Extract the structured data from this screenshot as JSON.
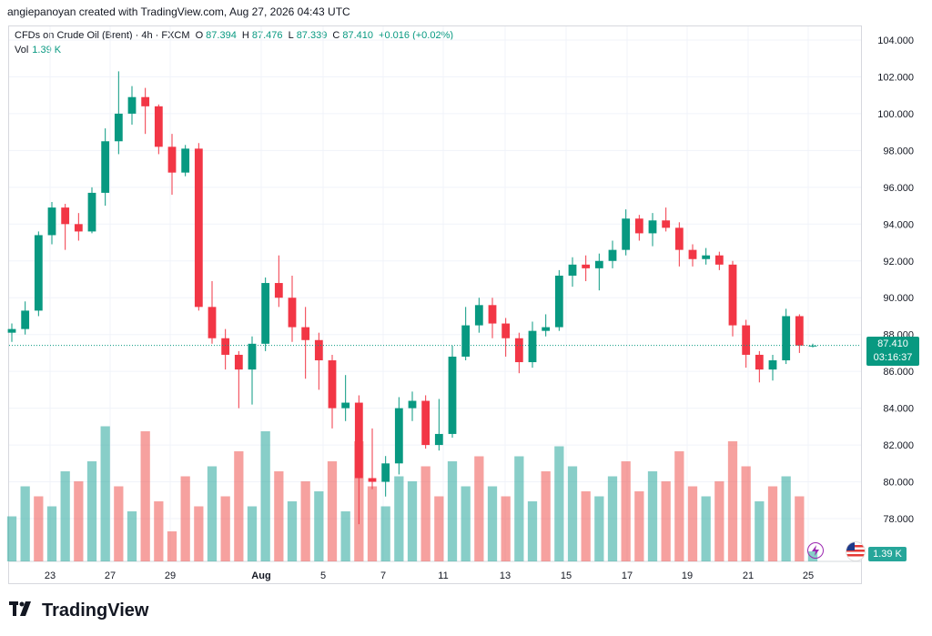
{
  "header": {
    "attribution": "angiepanoyan created with TradingView.com, Aug 27, 2026 04:43 UTC"
  },
  "legend": {
    "symbol": "CFDs on Crude Oil (Brent) · 4h · FXCM",
    "o_label": "O",
    "o_value": "87.394",
    "h_label": "H",
    "h_value": "87.476",
    "l_label": "L",
    "l_value": "87.339",
    "c_label": "C",
    "c_value": "87.410",
    "change": "+0.016 (+0.02%)",
    "vol_label": "Vol",
    "vol_value": "1.39 K"
  },
  "price_axis": {
    "last_price": "87.410",
    "countdown": "03:16:37",
    "volume_badge": "1.39 K"
  },
  "brand": {
    "name": "TradingView"
  },
  "colors": {
    "up": "#089981",
    "down": "#f23645",
    "up_volume": "#26a69a",
    "down_volume": "#ef5350"
  },
  "chart_data": {
    "type": "candlestick",
    "y_ticks": [
      "78.000",
      "80.000",
      "82.000",
      "84.000",
      "86.000",
      "88.000",
      "90.000",
      "92.000",
      "94.000",
      "96.000",
      "98.000",
      "100.000",
      "102.000",
      "104.000"
    ],
    "x_ticks": [
      "23",
      "27",
      "29",
      "Aug",
      "5",
      "7",
      "11",
      "13",
      "15",
      "17",
      "19",
      "21",
      "25",
      "27"
    ],
    "ylim": [
      77,
      105
    ],
    "grid": true,
    "current_price": 87.41,
    "candles": [
      [
        88.1,
        88.3,
        87.6,
        88.6
      ],
      [
        88.3,
        89.3,
        88.0,
        89.8
      ],
      [
        89.3,
        93.4,
        89.0,
        93.6
      ],
      [
        93.4,
        94.9,
        92.9,
        95.2
      ],
      [
        94.9,
        94.0,
        92.6,
        95.1
      ],
      [
        94.0,
        93.6,
        93.1,
        94.6
      ],
      [
        93.6,
        95.7,
        93.5,
        96.0
      ],
      [
        95.7,
        98.5,
        95.0,
        99.2
      ],
      [
        98.5,
        100.0,
        97.8,
        102.3
      ],
      [
        100.0,
        100.9,
        99.4,
        101.5
      ],
      [
        100.9,
        100.4,
        98.9,
        101.4
      ],
      [
        100.4,
        98.2,
        97.8,
        100.5
      ],
      [
        98.2,
        96.8,
        95.6,
        98.9
      ],
      [
        96.8,
        98.1,
        96.6,
        98.3
      ],
      [
        98.1,
        89.5,
        89.3,
        98.4
      ],
      [
        89.5,
        87.8,
        87.5,
        90.9
      ],
      [
        87.8,
        86.9,
        86.1,
        88.3
      ],
      [
        86.9,
        86.1,
        84.0,
        87.1
      ],
      [
        86.1,
        87.5,
        84.2,
        87.9
      ],
      [
        87.5,
        90.8,
        87.1,
        91.1
      ],
      [
        90.8,
        90.0,
        89.5,
        92.3
      ],
      [
        90.0,
        88.4,
        87.6,
        91.2
      ],
      [
        88.4,
        87.7,
        85.6,
        89.5
      ],
      [
        87.7,
        86.6,
        85.0,
        88.1
      ],
      [
        86.6,
        84.0,
        82.9,
        86.9
      ],
      [
        84.0,
        84.3,
        83.3,
        85.8
      ],
      [
        84.3,
        80.2,
        77.7,
        84.7
      ],
      [
        80.2,
        80.0,
        79.6,
        82.9
      ],
      [
        80.0,
        81.0,
        79.2,
        81.4
      ],
      [
        81.0,
        84.0,
        80.4,
        84.6
      ],
      [
        84.0,
        84.4,
        83.3,
        84.9
      ],
      [
        84.4,
        82.0,
        81.8,
        84.7
      ],
      [
        82.0,
        82.6,
        81.7,
        84.5
      ],
      [
        82.6,
        86.8,
        82.4,
        87.4
      ],
      [
        86.8,
        88.5,
        86.6,
        89.5
      ],
      [
        88.5,
        89.6,
        88.1,
        90.0
      ],
      [
        89.6,
        88.6,
        87.8,
        90.0
      ],
      [
        88.6,
        87.8,
        86.8,
        88.9
      ],
      [
        87.8,
        86.5,
        85.9,
        88.1
      ],
      [
        86.5,
        88.2,
        86.2,
        88.7
      ],
      [
        88.2,
        88.4,
        87.9,
        89.1
      ],
      [
        88.4,
        91.2,
        88.2,
        91.5
      ],
      [
        91.2,
        91.8,
        90.6,
        92.2
      ],
      [
        91.8,
        91.6,
        90.9,
        92.3
      ],
      [
        91.6,
        92.0,
        90.4,
        92.4
      ],
      [
        92.0,
        92.6,
        91.6,
        93.1
      ],
      [
        92.6,
        94.3,
        92.3,
        94.8
      ],
      [
        94.3,
        93.5,
        93.1,
        94.5
      ],
      [
        93.5,
        94.2,
        92.8,
        94.6
      ],
      [
        94.2,
        93.8,
        93.6,
        94.9
      ],
      [
        93.8,
        92.6,
        91.7,
        94.1
      ],
      [
        92.6,
        92.1,
        91.7,
        92.9
      ],
      [
        92.1,
        92.3,
        91.8,
        92.7
      ],
      [
        92.3,
        91.8,
        91.5,
        92.5
      ],
      [
        91.8,
        88.5,
        87.9,
        92.0
      ],
      [
        88.5,
        86.9,
        86.2,
        88.8
      ],
      [
        86.9,
        86.1,
        85.4,
        87.1
      ],
      [
        86.1,
        86.6,
        85.5,
        86.9
      ],
      [
        86.6,
        89.0,
        86.4,
        89.4
      ],
      [
        89.0,
        87.4,
        87.0,
        89.1
      ],
      [
        87.4,
        87.4,
        87.3,
        87.5
      ]
    ],
    "volume": [
      [
        0.9,
        "up"
      ],
      [
        1.5,
        "up"
      ],
      [
        1.3,
        "down"
      ],
      [
        1.1,
        "up"
      ],
      [
        1.8,
        "up"
      ],
      [
        1.6,
        "down"
      ],
      [
        2.0,
        "up"
      ],
      [
        2.7,
        "up"
      ],
      [
        1.5,
        "down"
      ],
      [
        1.0,
        "up"
      ],
      [
        2.6,
        "down"
      ],
      [
        1.2,
        "down"
      ],
      [
        0.6,
        "down"
      ],
      [
        1.7,
        "down"
      ],
      [
        1.1,
        "down"
      ],
      [
        1.9,
        "up"
      ],
      [
        1.3,
        "down"
      ],
      [
        2.2,
        "down"
      ],
      [
        1.1,
        "up"
      ],
      [
        2.6,
        "up"
      ],
      [
        1.8,
        "down"
      ],
      [
        1.2,
        "up"
      ],
      [
        1.6,
        "down"
      ],
      [
        1.4,
        "up"
      ],
      [
        2.0,
        "down"
      ],
      [
        1.0,
        "up"
      ],
      [
        2.4,
        "down"
      ],
      [
        1.5,
        "down"
      ],
      [
        1.1,
        "up"
      ],
      [
        1.7,
        "up"
      ],
      [
        1.6,
        "up"
      ],
      [
        1.9,
        "down"
      ],
      [
        1.3,
        "down"
      ],
      [
        2.0,
        "up"
      ],
      [
        1.5,
        "up"
      ],
      [
        2.1,
        "down"
      ],
      [
        1.5,
        "up"
      ],
      [
        1.3,
        "down"
      ],
      [
        2.1,
        "up"
      ],
      [
        1.2,
        "up"
      ],
      [
        1.8,
        "down"
      ],
      [
        2.3,
        "up"
      ],
      [
        1.9,
        "up"
      ],
      [
        1.4,
        "down"
      ],
      [
        1.3,
        "up"
      ],
      [
        1.7,
        "up"
      ],
      [
        2.0,
        "down"
      ],
      [
        1.4,
        "down"
      ],
      [
        1.8,
        "up"
      ],
      [
        1.6,
        "down"
      ],
      [
        2.2,
        "down"
      ],
      [
        1.5,
        "down"
      ],
      [
        1.3,
        "up"
      ],
      [
        1.6,
        "down"
      ],
      [
        2.4,
        "down"
      ],
      [
        1.9,
        "down"
      ],
      [
        1.2,
        "up"
      ],
      [
        1.5,
        "down"
      ],
      [
        1.7,
        "up"
      ],
      [
        1.3,
        "down"
      ],
      [
        0.2,
        "up"
      ]
    ]
  }
}
